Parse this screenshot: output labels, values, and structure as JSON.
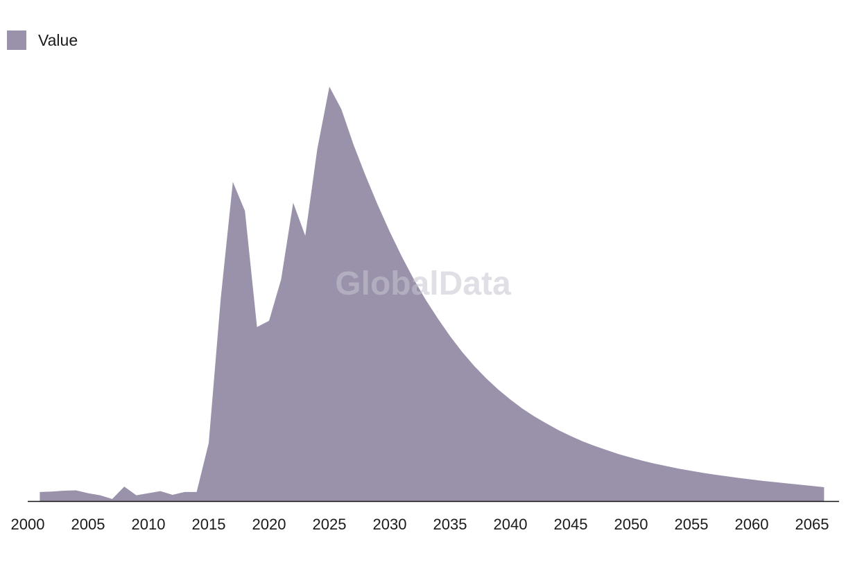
{
  "watermark": "GlobalData",
  "colors": {
    "area": "#9a91aa",
    "axis": "#111111",
    "tick_text": "#1a1a1a",
    "watermark": "#c9c4d2"
  },
  "chart_data": {
    "type": "area",
    "legend": {
      "position": "top-left",
      "entries": [
        "Value"
      ]
    },
    "series": [
      {
        "name": "Value",
        "x": [
          2001,
          2002,
          2003,
          2004,
          2005,
          2006,
          2007,
          2008,
          2009,
          2010,
          2011,
          2012,
          2013,
          2014,
          2015,
          2016,
          2017,
          2018,
          2019,
          2020,
          2021,
          2022,
          2023,
          2024,
          2025,
          2026,
          2027,
          2028,
          2029,
          2030,
          2031,
          2032,
          2033,
          2034,
          2035,
          2036,
          2037,
          2038,
          2039,
          2040,
          2041,
          2042,
          2043,
          2044,
          2045,
          2046,
          2047,
          2048,
          2049,
          2050,
          2051,
          2052,
          2053,
          2054,
          2055,
          2056,
          2057,
          2058,
          2059,
          2060,
          2061,
          2062,
          2063,
          2064,
          2065,
          2066
        ],
        "values": [
          2.2,
          2.3,
          2.5,
          2.6,
          1.9,
          1.4,
          0.5,
          3.5,
          1.4,
          1.9,
          2.4,
          1.5,
          2.2,
          2.2,
          14,
          49,
          77,
          70,
          42,
          43.5,
          53.5,
          72,
          64,
          85,
          100,
          94.5,
          86,
          78.5,
          71.5,
          65,
          59,
          53.5,
          48.5,
          44,
          39.8,
          36,
          32.6,
          29.6,
          26.9,
          24.5,
          22.3,
          20.4,
          18.7,
          17.1,
          15.7,
          14.4,
          13.3,
          12.3,
          11.3,
          10.5,
          9.7,
          9.0,
          8.4,
          7.8,
          7.3,
          6.8,
          6.35,
          5.95,
          5.55,
          5.2,
          4.85,
          4.55,
          4.25,
          3.95,
          3.65,
          3.35
        ]
      }
    ],
    "x_ticks": [
      "2000",
      "2005",
      "2010",
      "2015",
      "2020",
      "2025",
      "2030",
      "2035",
      "2040",
      "2045",
      "2050",
      "2055",
      "2060",
      "2065"
    ],
    "xlim": [
      2000,
      2066.7
    ],
    "ylim": [
      0,
      100
    ],
    "yaxis_visible": false,
    "grid": false,
    "xlabel": "",
    "ylabel": ""
  }
}
